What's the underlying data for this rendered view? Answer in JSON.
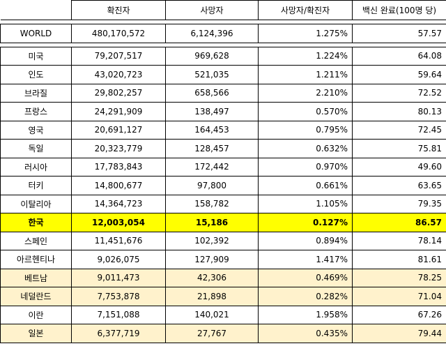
{
  "headers": [
    "",
    "확진자",
    "사망자",
    "사망자/확진자",
    "백신 완료(100명 당)"
  ],
  "world": {
    "name": "WORLD",
    "cases": "480,170,572",
    "deaths": "6,124,396",
    "ratio": "1.275%",
    "vaccine": "57.57"
  },
  "rows": [
    {
      "name": "미국",
      "cases": "79,207,517",
      "deaths": "969,628",
      "ratio": "1.224%",
      "vaccine": "64.08"
    },
    {
      "name": "인도",
      "cases": "43,020,723",
      "deaths": "521,035",
      "ratio": "1.211%",
      "vaccine": "59.64"
    },
    {
      "name": "브라질",
      "cases": "29,802,257",
      "deaths": "658,566",
      "ratio": "2.210%",
      "vaccine": "72.52"
    },
    {
      "name": "프랑스",
      "cases": "24,291,909",
      "deaths": "138,497",
      "ratio": "0.570%",
      "vaccine": "80.13"
    },
    {
      "name": "영국",
      "cases": "20,691,127",
      "deaths": "164,453",
      "ratio": "0.795%",
      "vaccine": "72.45"
    },
    {
      "name": "독일",
      "cases": "20,323,779",
      "deaths": "128,457",
      "ratio": "0.632%",
      "vaccine": "75.81"
    },
    {
      "name": "러시아",
      "cases": "17,783,843",
      "deaths": "172,442",
      "ratio": "0.970%",
      "vaccine": "49.60"
    },
    {
      "name": "터키",
      "cases": "14,800,677",
      "deaths": "97,800",
      "ratio": "0.661%",
      "vaccine": "63.65"
    },
    {
      "name": "이탈리아",
      "cases": "14,364,723",
      "deaths": "158,782",
      "ratio": "1.105%",
      "vaccine": "79.35"
    },
    {
      "name": "한국",
      "cases": "12,003,054",
      "deaths": "15,186",
      "ratio": "0.127%",
      "vaccine": "86.57"
    },
    {
      "name": "스페인",
      "cases": "11,451,676",
      "deaths": "102,392",
      "ratio": "0.894%",
      "vaccine": "78.14"
    },
    {
      "name": "아르헨티나",
      "cases": "9,026,075",
      "deaths": "127,909",
      "ratio": "1.417%",
      "vaccine": "81.61"
    },
    {
      "name": "베트남",
      "cases": "9,011,473",
      "deaths": "42,306",
      "ratio": "0.469%",
      "vaccine": "78.25"
    },
    {
      "name": "네덜란드",
      "cases": "7,753,878",
      "deaths": "21,898",
      "ratio": "0.282%",
      "vaccine": "71.04"
    },
    {
      "name": "이란",
      "cases": "7,151,088",
      "deaths": "140,021",
      "ratio": "1.958%",
      "vaccine": "67.26"
    },
    {
      "name": "일본",
      "cases": "6,377,719",
      "deaths": "27,767",
      "ratio": "0.435%",
      "vaccine": "79.44"
    }
  ],
  "colors": {
    "highlight": "#ffff00",
    "asia_tint": "#fff2cc",
    "border": "#000000"
  }
}
